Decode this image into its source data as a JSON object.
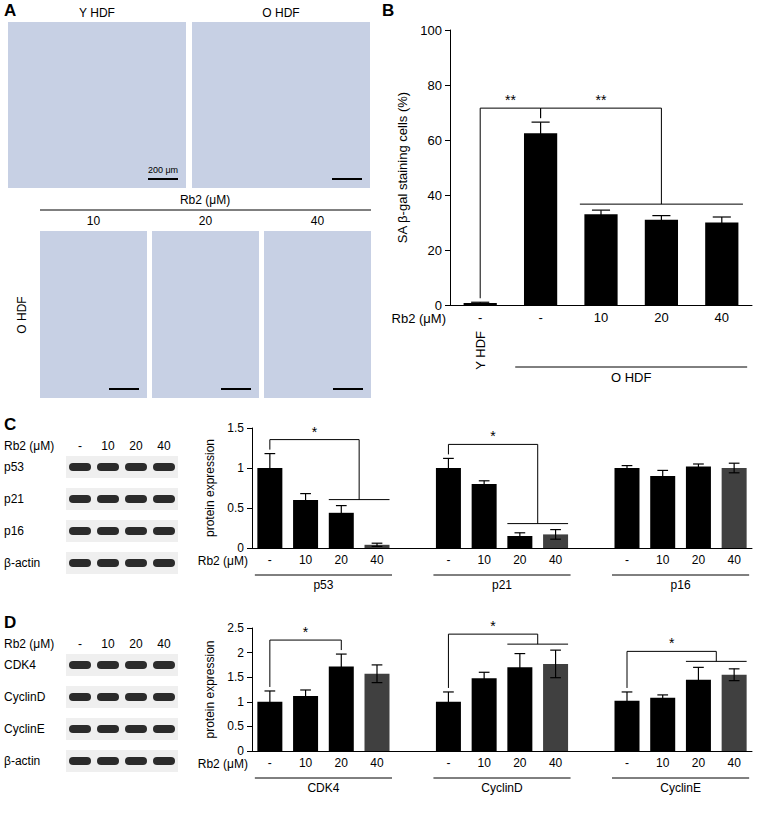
{
  "panels": [
    "A",
    "B",
    "C",
    "D"
  ],
  "images": {
    "top": [
      "Y HDF",
      "O HDF"
    ],
    "treatment": "Rb2 (μM)",
    "doses": [
      "10",
      "20",
      "40"
    ],
    "row_label": "O HDF",
    "scale_bar": "200 μm"
  },
  "blots": [
    {
      "treatment": "Rb2 (μM)",
      "lanes": [
        "-",
        "10",
        "20",
        "40"
      ],
      "rows": [
        "p53",
        "p21",
        "p16",
        "β-actin"
      ]
    },
    {
      "treatment": "Rb2 (μM)",
      "lanes": [
        "-",
        "10",
        "20",
        "40"
      ],
      "rows": [
        "CDK4",
        "CyclinD",
        "CyclinE",
        "β-actin"
      ]
    }
  ],
  "chart_data": [
    {
      "type": "bar",
      "ylabel": "SA β-gal staining cells (%)",
      "xlabel": "Rb2 (μM)",
      "categories": [
        "-",
        "-",
        "10",
        "20",
        "40"
      ],
      "values": [
        0.7,
        62.5,
        33,
        31,
        30
      ],
      "errors": [
        0.3,
        4,
        1.5,
        1.5,
        2
      ],
      "color": "#000000",
      "ylim": [
        0,
        100
      ],
      "yticks": [
        0,
        20,
        40,
        60,
        80,
        100
      ],
      "grid": false,
      "groups": [
        {
          "label": "Y HDF",
          "from": 0,
          "to": 0
        },
        {
          "label": "O HDF",
          "from": 1,
          "to": 4
        }
      ],
      "significance": [
        {
          "text": "**",
          "from": [
            0
          ],
          "to": [
            1
          ]
        },
        {
          "text": "**",
          "from": [
            1
          ],
          "to": [
            2,
            3,
            4
          ]
        }
      ]
    },
    {
      "type": "bar",
      "ylabel": "protein expression",
      "xlabel": "Rb2 (μM)",
      "categories": [
        "-",
        "10",
        "20",
        "40",
        null,
        "-",
        "10",
        "20",
        "40",
        null,
        "-",
        "10",
        "20",
        "40"
      ],
      "values": [
        1.0,
        0.6,
        0.44,
        0.04,
        null,
        1.0,
        0.8,
        0.15,
        0.17,
        null,
        1.0,
        0.9,
        1.02,
        1.0
      ],
      "errors": [
        0.18,
        0.08,
        0.09,
        0.02,
        null,
        0.12,
        0.04,
        0.04,
        0.06,
        null,
        0.03,
        0.07,
        0.03,
        0.06
      ],
      "colors": [
        "#000000",
        "#000000",
        "#000000",
        "#404040",
        null,
        "#000000",
        "#000000",
        "#000000",
        "#404040",
        null,
        "#000000",
        "#000000",
        "#000000",
        "#404040"
      ],
      "ylim": [
        0,
        1.5
      ],
      "yticks": [
        0,
        0.5,
        1,
        1.5
      ],
      "grid": false,
      "groups": [
        {
          "label": "p53",
          "from": 0,
          "to": 3
        },
        {
          "label": "p21",
          "from": 5,
          "to": 8
        },
        {
          "label": "p16",
          "from": 10,
          "to": 13
        }
      ],
      "significance": [
        {
          "text": "*",
          "from": [
            0
          ],
          "to": [
            2,
            3
          ]
        },
        {
          "text": "*",
          "from": [
            5
          ],
          "to": [
            7,
            8
          ]
        }
      ]
    },
    {
      "type": "bar",
      "ylabel": "protein expression",
      "xlabel": "Rb2 (μM)",
      "categories": [
        "-",
        "10",
        "20",
        "40",
        null,
        "-",
        "10",
        "20",
        "40",
        null,
        "-",
        "10",
        "20",
        "40"
      ],
      "values": [
        1.0,
        1.12,
        1.72,
        1.57,
        null,
        1.0,
        1.48,
        1.7,
        1.77,
        null,
        1.02,
        1.08,
        1.45,
        1.55
      ],
      "errors": [
        0.22,
        0.12,
        0.25,
        0.18,
        null,
        0.2,
        0.12,
        0.28,
        0.28,
        null,
        0.18,
        0.06,
        0.25,
        0.12
      ],
      "colors": [
        "#000000",
        "#000000",
        "#000000",
        "#404040",
        null,
        "#000000",
        "#000000",
        "#000000",
        "#404040",
        null,
        "#000000",
        "#000000",
        "#000000",
        "#404040"
      ],
      "ylim": [
        0,
        2.5
      ],
      "yticks": [
        0,
        0.5,
        1,
        1.5,
        2,
        2.5
      ],
      "grid": false,
      "groups": [
        {
          "label": "CDK4",
          "from": 0,
          "to": 3
        },
        {
          "label": "CyclinD",
          "from": 5,
          "to": 8
        },
        {
          "label": "CyclinE",
          "from": 10,
          "to": 13
        }
      ],
      "significance": [
        {
          "text": "*",
          "from": [
            0
          ],
          "to": [
            2
          ]
        },
        {
          "text": "*",
          "from": [
            5
          ],
          "to": [
            7,
            8
          ]
        },
        {
          "text": "*",
          "from": [
            10
          ],
          "to": [
            12,
            13
          ]
        }
      ]
    }
  ]
}
